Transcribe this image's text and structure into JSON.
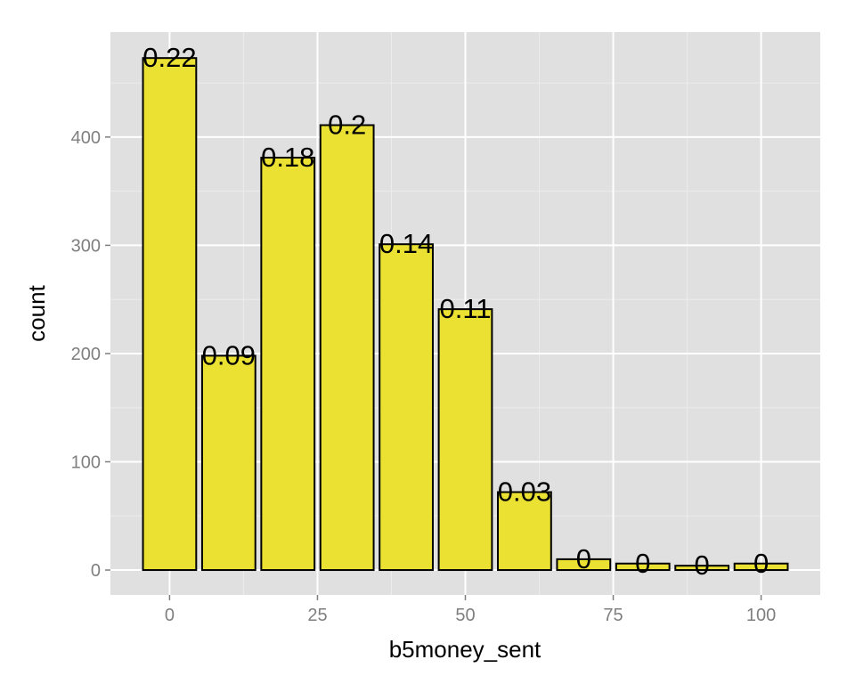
{
  "chart_data": {
    "type": "bar",
    "title": "",
    "xlabel": "b5money_sent",
    "ylabel": "count",
    "x": [
      0,
      10,
      20,
      30,
      40,
      50,
      60,
      70,
      80,
      90,
      100
    ],
    "values": [
      473,
      198,
      381,
      411,
      301,
      241,
      72,
      10,
      6,
      4,
      6
    ],
    "data_labels": [
      "0.22",
      "0.09",
      "0.18",
      "0.2",
      "0.14",
      "0.11",
      "0.03",
      "0",
      "0",
      "0",
      "0"
    ],
    "x_ticks": [
      0,
      25,
      50,
      75,
      100
    ],
    "x_tick_labels": [
      "0",
      "25",
      "50",
      "75",
      "100"
    ],
    "y_ticks": [
      0,
      100,
      200,
      300,
      400
    ],
    "y_tick_labels": [
      "0",
      "100",
      "200",
      "300",
      "400"
    ],
    "xlim": [
      -10,
      110
    ],
    "ylim": [
      -23,
      497
    ],
    "grid": true,
    "colors": {
      "bar_fill": "#ebe133",
      "bar_stroke": "#000000",
      "panel_background": "#e0e0e0",
      "grid_major": "#ffffff",
      "grid_minor": "#ececec"
    }
  }
}
